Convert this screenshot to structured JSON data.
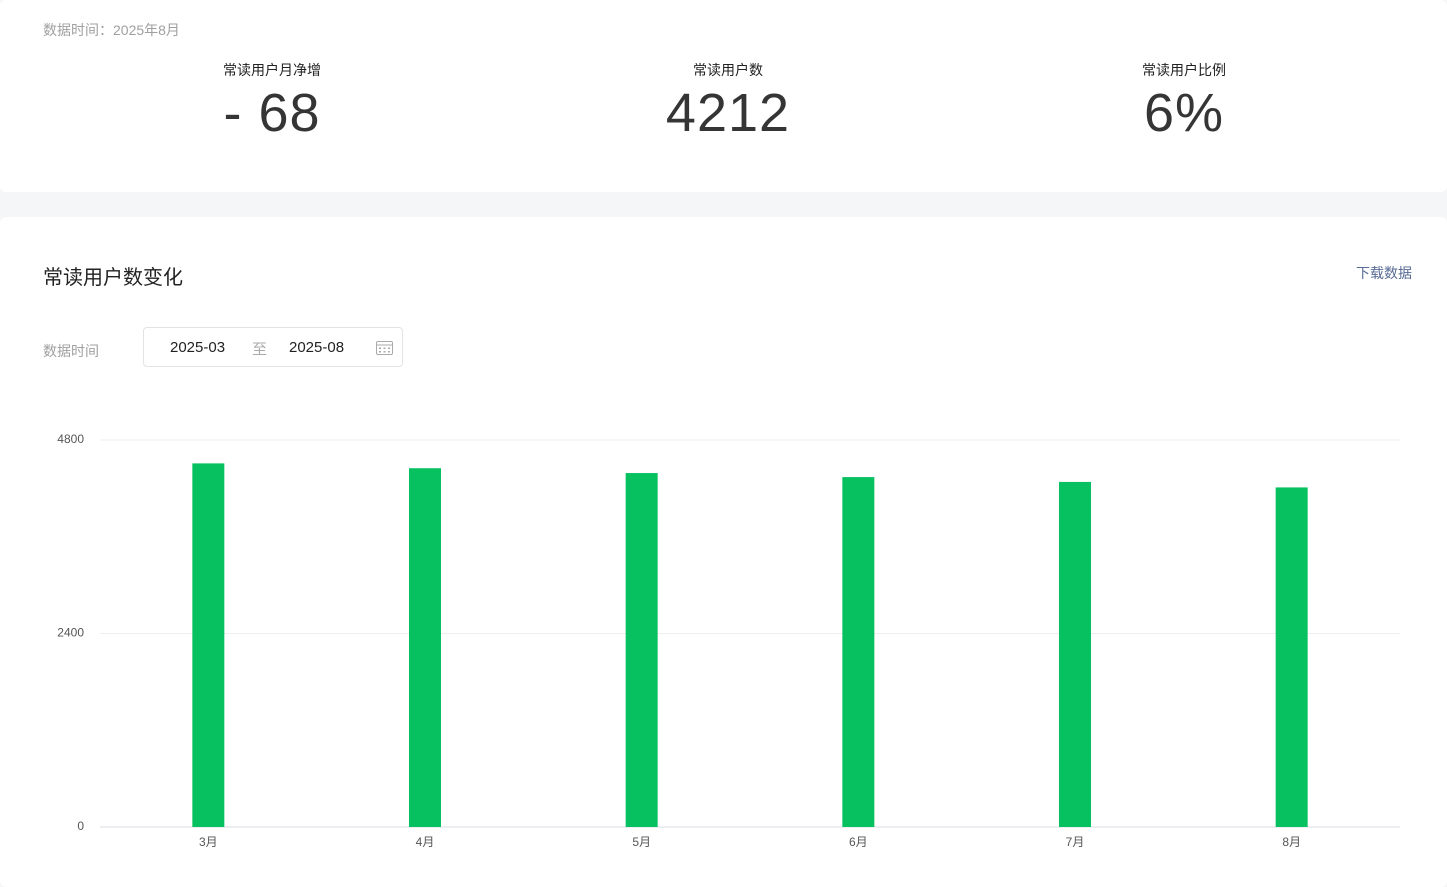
{
  "header": {
    "data_time": "数据时间：2025年8月"
  },
  "stats": [
    {
      "label": "常读用户月净增",
      "value": "- 68"
    },
    {
      "label": "常读用户数",
      "value": "4212"
    },
    {
      "label": "常读用户比例",
      "value": "6%"
    }
  ],
  "section": {
    "title": "常读用户数变化",
    "download": "下载数据",
    "filter_label": "数据时间",
    "range_start": "2025-03",
    "range_separator": "至",
    "range_end": "2025-08"
  },
  "chart_data": {
    "type": "bar",
    "categories": [
      "3月",
      "4月",
      "5月",
      "6月",
      "7月",
      "8月"
    ],
    "values": [
      4510,
      4450,
      4390,
      4340,
      4280,
      4212
    ],
    "color": "#07c160",
    "ylim": [
      0,
      4800
    ],
    "yticks": [
      0,
      2400,
      4800
    ],
    "grid": true
  }
}
